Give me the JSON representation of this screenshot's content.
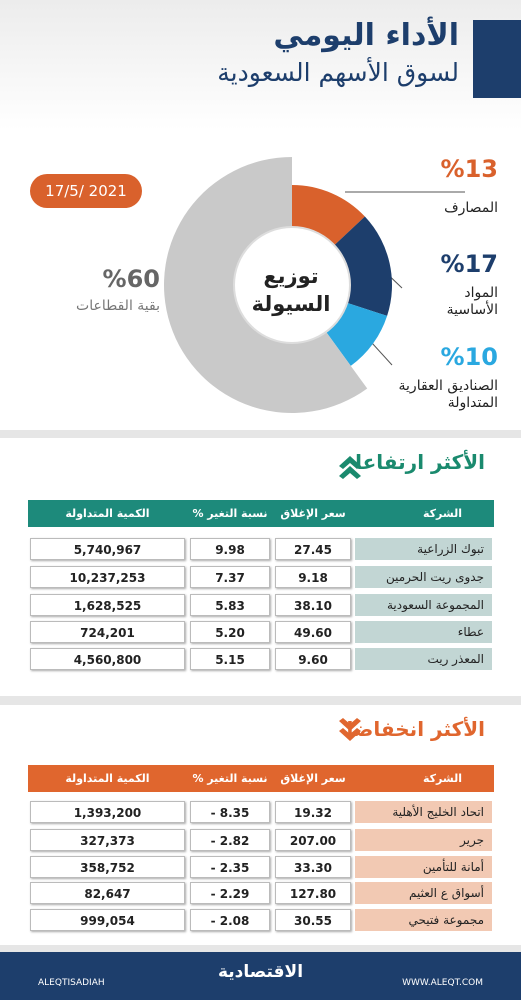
{
  "header": {
    "title": "الأداء اليومي",
    "subtitle": "لسوق الأسهم السعودية",
    "date": "17/5/ 2021"
  },
  "chart_data": {
    "type": "pie",
    "center_label": "توزيع\nالسيولة",
    "categories": [
      "المصارف",
      "المواد\nالأساسية",
      "الصناديق العقارية\nالمتداولة",
      "بقية القطاعات"
    ],
    "values": [
      13,
      17,
      10,
      60
    ],
    "value_labels": [
      "%13",
      "%17",
      "%10",
      "%60"
    ],
    "colors": [
      "#d9612c",
      "#1d3e6c",
      "#2aa8e0",
      "#c9c9c9"
    ]
  },
  "gainers": {
    "title": "الأكثر ارتفاعا",
    "header": [
      "الشركة",
      "سعر الإغلاق",
      "نسبة التغير %",
      "الكمية المتداولة"
    ],
    "rows": [
      [
        "تبوك الزراعية",
        "27.45",
        "9.98",
        "5,740,967"
      ],
      [
        "جدوى ريت الحرمين",
        "9.18",
        "7.37",
        "10,237,253"
      ],
      [
        "المجموعة السعودية",
        "38.10",
        "5.83",
        "1,628,525"
      ],
      [
        "عطاء",
        "49.60",
        "5.20",
        "724,201"
      ],
      [
        "المعذر ريت",
        "9.60",
        "5.15",
        "4,560,800"
      ]
    ]
  },
  "losers": {
    "title": "الأكثر انخفاضا",
    "header": [
      "الشركة",
      "سعر الإغلاق",
      "نسبة التغير %",
      "الكمية المتداولة"
    ],
    "rows": [
      [
        "اتحاد الخليج الأهلية",
        "19.32",
        "- 8.35",
        "1,393,200"
      ],
      [
        "جرير",
        "207.00",
        "- 2.82",
        "327,373"
      ],
      [
        "أمانة للتأمين",
        "33.30",
        "- 2.35",
        "358,752"
      ],
      [
        "أسواق ع العثيم",
        "127.80",
        "- 2.29",
        "82,647"
      ],
      [
        "مجموعة فتيحي",
        "30.55",
        "- 2.08",
        "999,054"
      ]
    ]
  },
  "footer": {
    "left": "ALEQTISADIAH",
    "logo": "الاقتصادية",
    "right": "WWW.ALEQT.COM"
  }
}
